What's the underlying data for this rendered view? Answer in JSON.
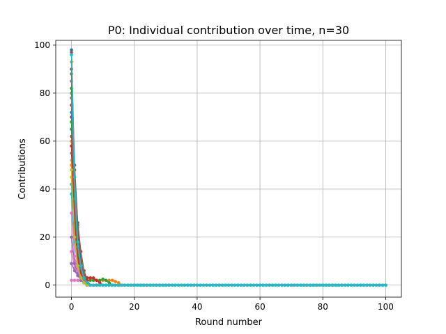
{
  "chart_data": {
    "type": "line",
    "title": "P0: Individual contribution over time, n=30",
    "xlabel": "Round number",
    "ylabel": "Contributions",
    "xlim": [
      -5,
      105
    ],
    "ylim": [
      -5,
      102
    ],
    "xticks": [
      0,
      20,
      40,
      60,
      80,
      100
    ],
    "yticks": [
      0,
      20,
      40,
      60,
      80,
      100
    ],
    "grid": true,
    "rounds": 100,
    "marker": "circle",
    "series": [
      {
        "color": "#1f77b4",
        "values": [
          98,
          40,
          22,
          8,
          3,
          1,
          0
        ]
      },
      {
        "color": "#ff7f0e",
        "values": [
          93,
          30,
          12,
          6,
          4,
          3,
          3,
          2,
          2,
          2,
          2,
          2,
          2,
          2,
          1.5,
          1,
          0
        ]
      },
      {
        "color": "#2ca02c",
        "values": [
          88,
          35,
          15,
          7,
          3,
          2,
          2,
          2,
          2,
          2,
          2.5,
          2,
          1,
          0
        ]
      },
      {
        "color": "#d62728",
        "values": [
          70,
          30,
          12,
          6,
          4,
          3,
          3,
          3,
          2,
          1,
          0
        ]
      },
      {
        "color": "#9467bd",
        "values": [
          80,
          28,
          10,
          5,
          2,
          1,
          0
        ]
      },
      {
        "color": "#8c564b",
        "values": [
          97,
          48,
          26,
          14,
          6,
          2,
          0
        ]
      },
      {
        "color": "#e377c2",
        "values": [
          14,
          7,
          4,
          2,
          2,
          1,
          0
        ]
      },
      {
        "color": "#7f7f7f",
        "values": [
          85,
          45,
          24,
          12,
          5,
          1,
          0
        ]
      },
      {
        "color": "#bcbd22",
        "values": [
          52,
          22,
          10,
          5,
          3,
          2,
          0
        ]
      },
      {
        "color": "#17becf",
        "values": [
          42,
          20,
          8,
          3,
          1,
          0
        ]
      },
      {
        "color": "#1f77b4",
        "values": [
          65,
          38,
          18,
          8,
          3,
          1,
          0
        ]
      },
      {
        "color": "#ff7f0e",
        "values": [
          60,
          25,
          10,
          5,
          3,
          1,
          0
        ]
      },
      {
        "color": "#2ca02c",
        "values": [
          82,
          40,
          16,
          6,
          2,
          0
        ]
      },
      {
        "color": "#d62728",
        "values": [
          75,
          35,
          18,
          9,
          4,
          2,
          0
        ]
      },
      {
        "color": "#9467bd",
        "values": [
          20,
          9,
          5,
          2,
          1,
          0
        ]
      },
      {
        "color": "#8c564b",
        "values": [
          90,
          50,
          25,
          10,
          4,
          1,
          0
        ]
      },
      {
        "color": "#e377c2",
        "values": [
          2,
          2,
          2,
          2,
          1,
          0
        ]
      },
      {
        "color": "#7f7f7f",
        "values": [
          55,
          28,
          12,
          5,
          2,
          0
        ]
      },
      {
        "color": "#bcbd22",
        "values": [
          45,
          20,
          9,
          4,
          2,
          1,
          0
        ]
      },
      {
        "color": "#17becf",
        "values": [
          38,
          18,
          8,
          3,
          1,
          0
        ]
      },
      {
        "color": "#1f77b4",
        "values": [
          72,
          30,
          14,
          6,
          2,
          0
        ]
      },
      {
        "color": "#ff7f0e",
        "values": [
          50,
          22,
          9,
          4,
          2,
          0
        ]
      },
      {
        "color": "#2ca02c",
        "values": [
          68,
          33,
          15,
          6,
          2,
          0
        ]
      },
      {
        "color": "#d62728",
        "values": [
          58,
          26,
          11,
          5,
          2,
          0
        ]
      },
      {
        "color": "#9467bd",
        "values": [
          9,
          6,
          4,
          2,
          1,
          0
        ]
      },
      {
        "color": "#8c564b",
        "values": [
          62,
          40,
          20,
          9,
          3,
          0
        ]
      },
      {
        "color": "#e377c2",
        "values": [
          30,
          12,
          6,
          3,
          1,
          0
        ]
      },
      {
        "color": "#7f7f7f",
        "values": [
          78,
          36,
          16,
          7,
          2,
          0
        ]
      },
      {
        "color": "#bcbd22",
        "values": [
          48,
          20,
          8,
          3,
          1,
          0
        ]
      },
      {
        "color": "#17becf",
        "values": [
          96,
          45,
          18,
          8,
          3,
          1,
          0
        ]
      }
    ]
  }
}
